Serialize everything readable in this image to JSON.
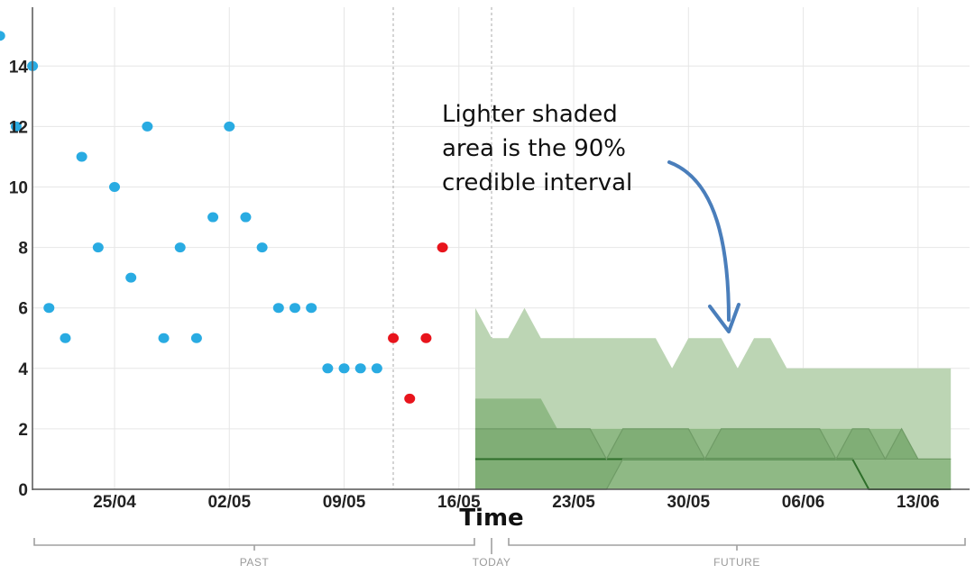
{
  "chart_data": {
    "type": "scatter",
    "title": "",
    "xlabel": "Time",
    "ylabel": "",
    "ylim": [
      0,
      15
    ],
    "y_ticks": [
      "0",
      "2",
      "4",
      "6",
      "8",
      "10",
      "12",
      "14"
    ],
    "x_ticks": [
      "25/04",
      "02/05",
      "09/05",
      "16/05",
      "23/05",
      "30/05",
      "06/06",
      "13/06"
    ],
    "grid": true,
    "series": [
      {
        "color": "#29abe2",
        "x": [
          "2023-04-18",
          "2023-04-19",
          "2023-04-20",
          "2023-04-21",
          "2023-04-22",
          "2023-04-23",
          "2023-04-24",
          "2023-04-25",
          "2023-04-26",
          "2023-04-27",
          "2023-04-28",
          "2023-04-29",
          "2023-04-30",
          "2023-05-01",
          "2023-05-02",
          "2023-05-03",
          "2023-05-04",
          "2023-05-05",
          "2023-05-06",
          "2023-05-07",
          "2023-05-08",
          "2023-05-09",
          "2023-05-10",
          "2023-05-11"
        ],
        "values": [
          15,
          12,
          14,
          6,
          5,
          11,
          8,
          10,
          7,
          12,
          5,
          8,
          5,
          9,
          12,
          9,
          8,
          6,
          6,
          6,
          4,
          4,
          4,
          4
        ]
      },
      {
        "color": "#e8141c",
        "x": [
          "2023-05-12",
          "2023-05-13",
          "2023-05-14",
          "2023-05-15"
        ],
        "values": [
          5,
          3,
          5,
          8
        ]
      }
    ],
    "forecast": {
      "x": [
        "2023-05-17",
        "2023-05-18",
        "2023-05-19",
        "2023-05-20",
        "2023-05-21",
        "2023-05-22",
        "2023-05-23",
        "2023-05-24",
        "2023-05-25",
        "2023-05-26",
        "2023-05-27",
        "2023-05-28",
        "2023-05-29",
        "2023-05-30",
        "2023-05-31",
        "2023-06-01",
        "2023-06-02",
        "2023-06-03",
        "2023-06-04",
        "2023-06-05",
        "2023-06-06",
        "2023-06-07",
        "2023-06-08",
        "2023-06-09",
        "2023-06-10",
        "2023-06-11",
        "2023-06-12",
        "2023-06-13",
        "2023-06-14",
        "2023-06-15"
      ],
      "outer_upper": [
        6,
        5,
        5,
        6,
        5,
        5,
        5,
        5,
        5,
        5,
        5,
        5,
        4,
        5,
        5,
        5,
        4,
        5,
        5,
        4,
        4,
        4,
        4,
        4,
        4,
        4,
        4,
        4,
        4,
        4
      ],
      "inner_upper": [
        3,
        3,
        3,
        3,
        3,
        2,
        2,
        2,
        2,
        2,
        2,
        2,
        2,
        2,
        2,
        2,
        2,
        2,
        2,
        2,
        2,
        2,
        2,
        2,
        2,
        2,
        2,
        1,
        1,
        1
      ],
      "inner_mid": [
        2,
        2,
        2,
        2,
        2,
        2,
        2,
        2,
        1,
        2,
        2,
        2,
        2,
        2,
        1,
        2,
        2,
        2,
        2,
        2,
        2,
        2,
        1,
        2,
        2,
        1,
        2,
        1,
        1,
        1
      ],
      "median": [
        1,
        1,
        1,
        1,
        1,
        1,
        1,
        1,
        1,
        1,
        1,
        1,
        1,
        1,
        1,
        1,
        1,
        1,
        1,
        1,
        1,
        1,
        1,
        1,
        0,
        0,
        0,
        0,
        0,
        0
      ],
      "inner_lower": [
        0,
        0,
        0,
        0,
        0,
        0,
        0,
        0,
        0,
        1,
        1,
        1,
        1,
        1,
        1,
        1,
        1,
        1,
        1,
        1,
        1,
        1,
        1,
        1,
        1,
        1,
        1,
        1,
        1,
        1
      ],
      "outer_color": "#bcd5b4",
      "inner_color": "#8fb985",
      "mid_color": "#80ae76",
      "median_color": "#2e6e2a"
    },
    "annotations": [
      "Lighter shaded area is the 90% credible interval"
    ],
    "annotation_lines": [
      "Lighter shaded",
      "area is the 90%",
      "credible interval"
    ],
    "periods": [
      "PAST",
      "TODAY",
      "FUTURE"
    ]
  }
}
